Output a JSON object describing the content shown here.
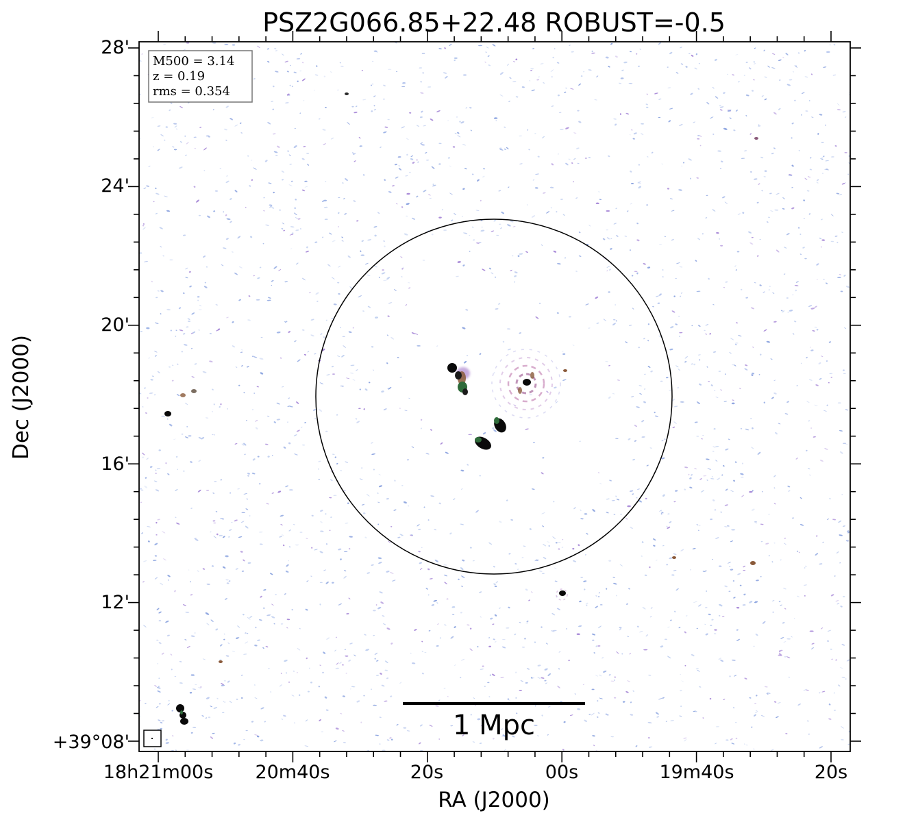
{
  "title": "PSZ2G066.85+22.48 ROBUST=-0.5",
  "xlabel": "RA (J2000)",
  "ylabel": "Dec (J2000)",
  "x_ticks": [
    "18h21m00s",
    "20m40s",
    "20s",
    "00s",
    "19m40s",
    "20s"
  ],
  "y_ticks": [
    "+39°08'",
    "12'",
    "16'",
    "20'",
    "24'",
    "28'"
  ],
  "info_box": {
    "line1": "M500 = 3.14",
    "line2": "z = 0.19",
    "line3": "rms = 0.354"
  },
  "scale_bar_label": "1 Mpc",
  "colors": {
    "noise_blue": "#9fb4e6",
    "noise_purple": "#a98bd8",
    "source_dark": "#0a0a0a",
    "source_green": "#2f6b3a",
    "source_brown": "#8a5a3a",
    "source_pink": "#c77ab6",
    "frame": "#000000"
  }
}
